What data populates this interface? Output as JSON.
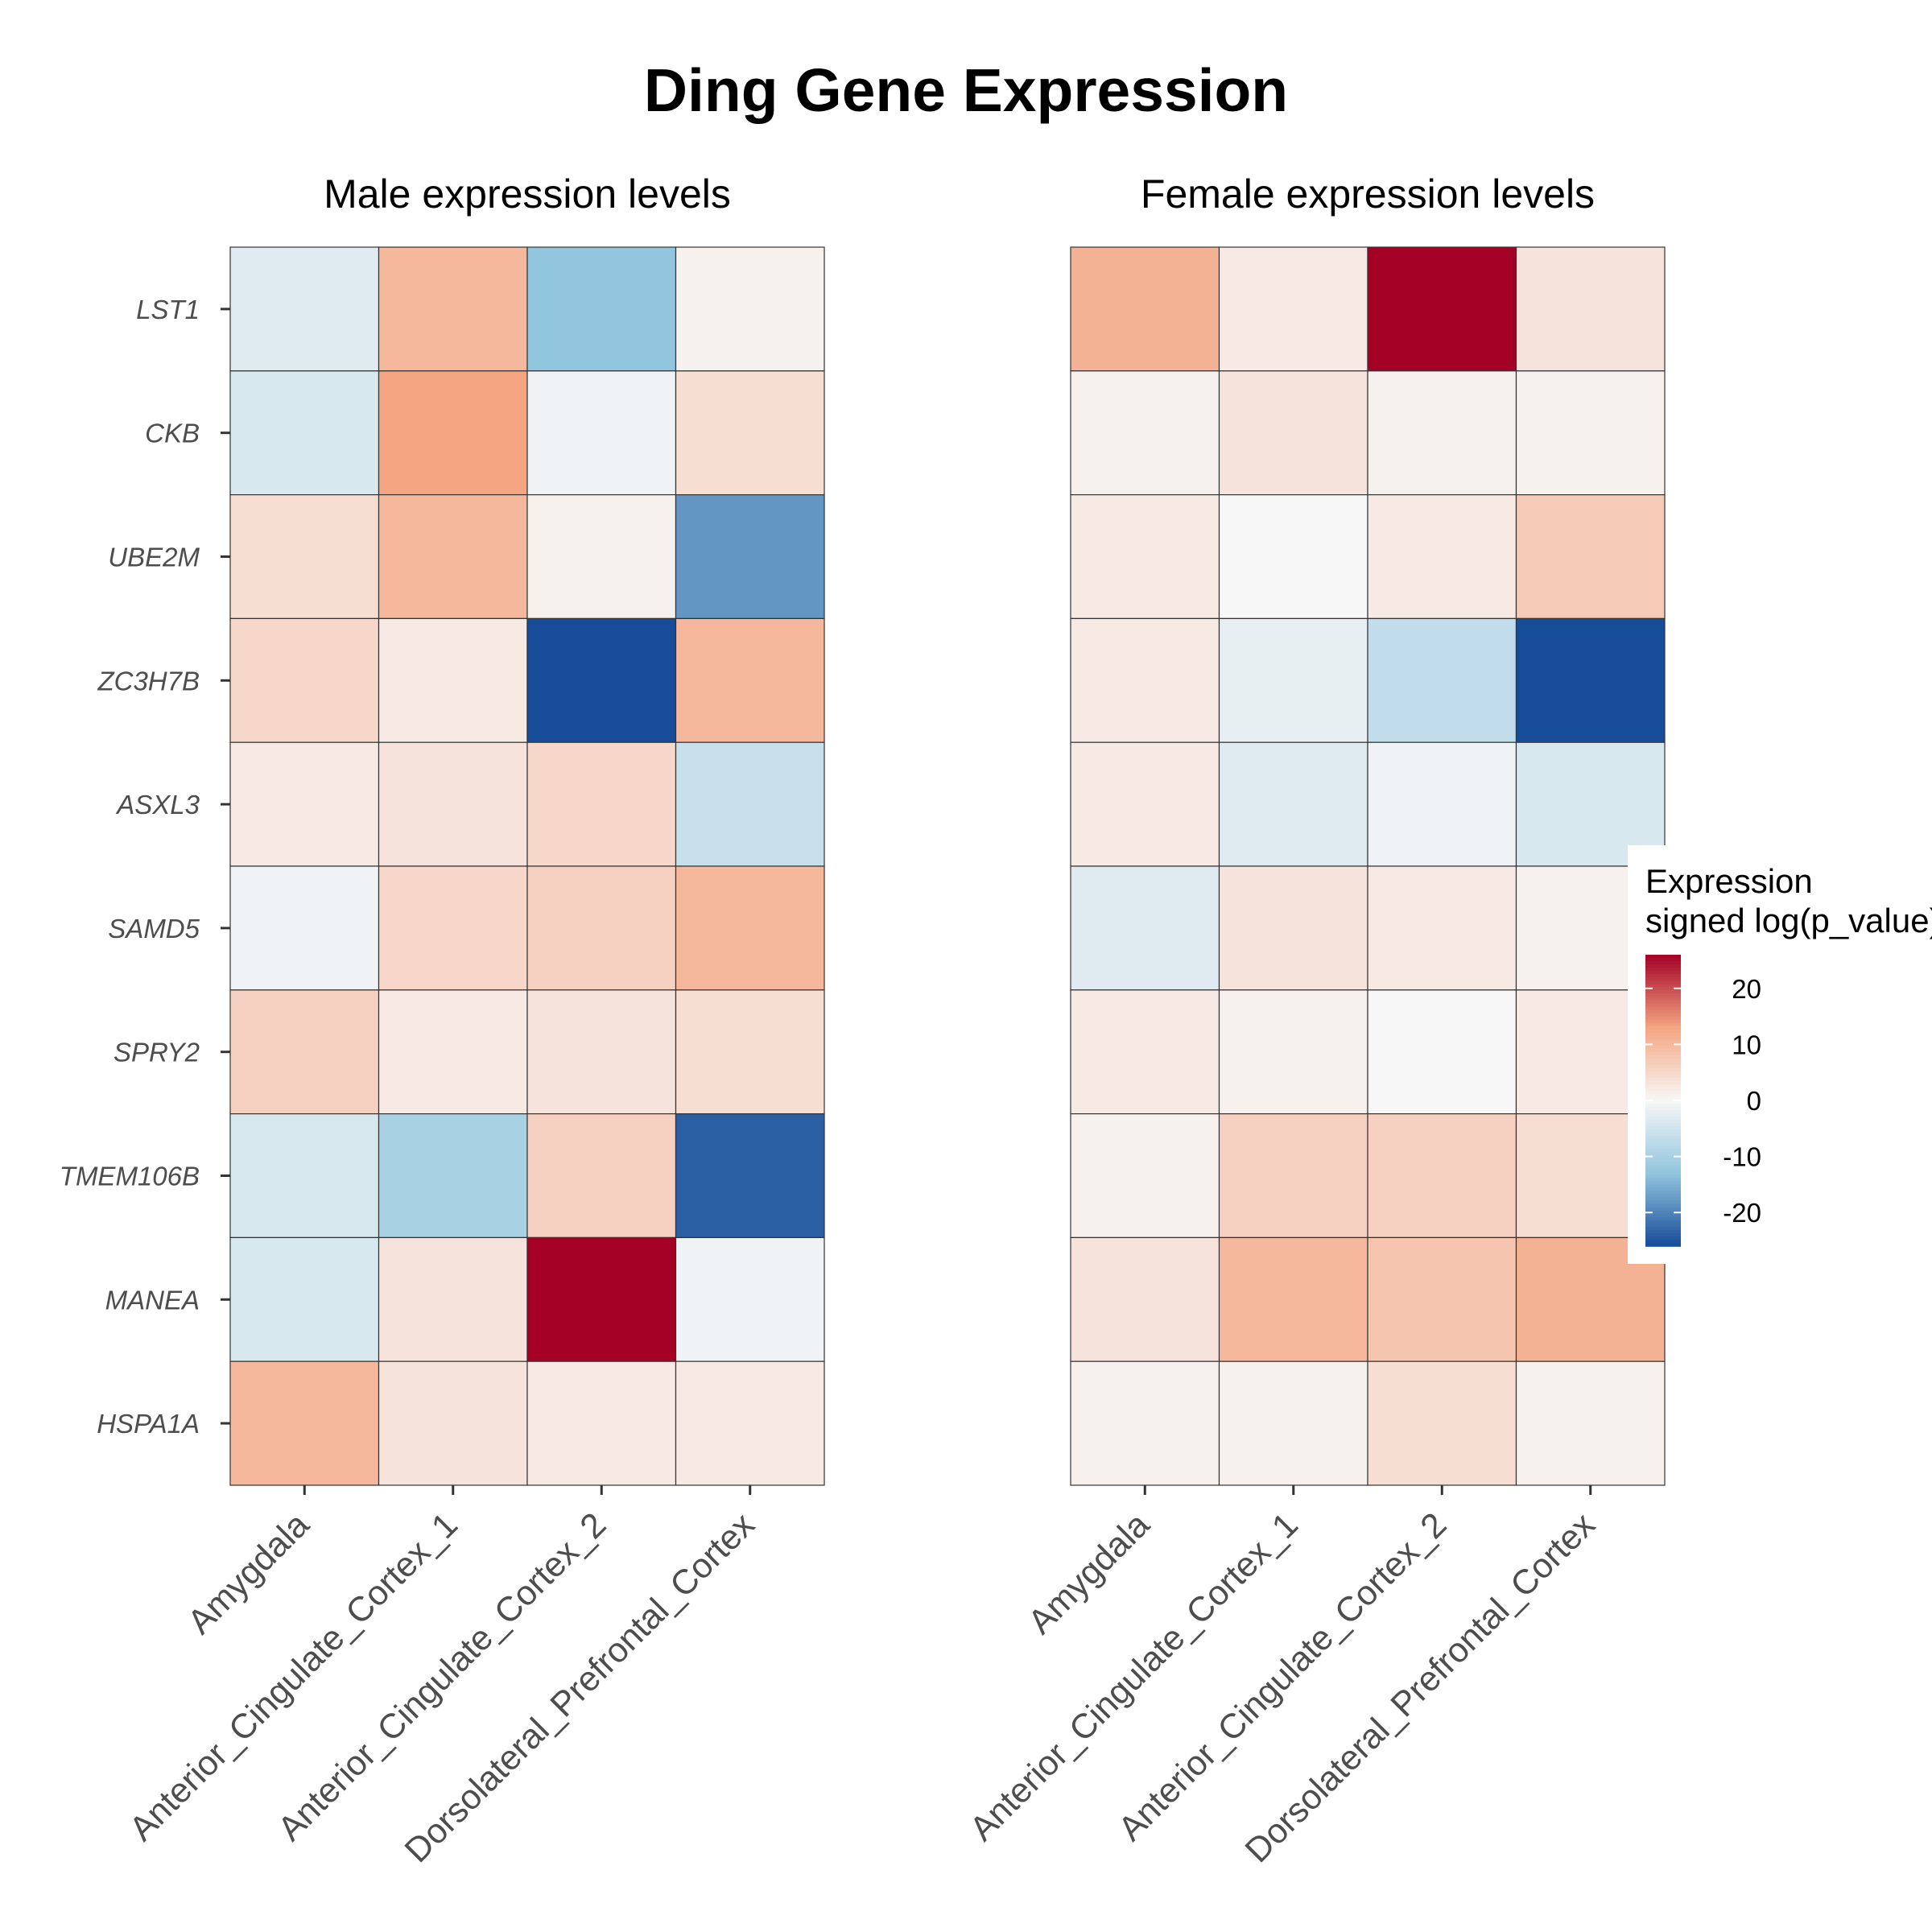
{
  "chart_data": {
    "type": "heatmap",
    "title": "Ding Gene Expression",
    "genes": [
      "LST1",
      "CKB",
      "UBE2M",
      "ZC3H7B",
      "ASXL3",
      "SAMD5",
      "SPRY2",
      "TMEM106B",
      "MANEA",
      "HSPA1A"
    ],
    "regions": [
      "Amygdala",
      "Anterior_Cingulate_Cortex_1",
      "Anterior_Cingulate_Cortex_2",
      "Dorsolateral_Prefrontal_Cortex"
    ],
    "panels": [
      {
        "name": "male",
        "subtitle": "Male expression levels",
        "values": [
          [
            -3,
            10,
            -13,
            1
          ],
          [
            -4,
            13,
            -1,
            4
          ],
          [
            4,
            10,
            1,
            -18
          ],
          [
            5,
            2,
            -26,
            10
          ],
          [
            2,
            3,
            5,
            -6
          ],
          [
            -1,
            5,
            6,
            10
          ],
          [
            6,
            2,
            3,
            4
          ],
          [
            -4,
            -10,
            6,
            -24
          ],
          [
            -4,
            3,
            26,
            -1
          ],
          [
            10,
            3,
            2,
            2
          ]
        ]
      },
      {
        "name": "female",
        "subtitle": "Female expression levels",
        "values": [
          [
            11,
            2,
            26,
            3
          ],
          [
            1,
            3,
            1,
            1
          ],
          [
            2,
            0,
            2,
            7
          ],
          [
            2,
            -2,
            -7,
            -26
          ],
          [
            2,
            -3,
            -1,
            -4
          ],
          [
            -3,
            3,
            2,
            1
          ],
          [
            2,
            1,
            0,
            2
          ],
          [
            1,
            6,
            6,
            4
          ],
          [
            3,
            10,
            8,
            11
          ],
          [
            1,
            1,
            4,
            1
          ]
        ]
      }
    ],
    "legend": {
      "title_line1": "Expression",
      "title_line2": "signed log(p_value)",
      "ticks": [
        20,
        10,
        0,
        -10,
        -20
      ],
      "tick_labels": [
        "20",
        "10",
        "0",
        "-10",
        "-20"
      ],
      "range": [
        -26,
        26
      ]
    },
    "colors": {
      "high": "#a50026",
      "mid_high": "#f4a582",
      "mid": "#f7f7f7",
      "mid_low": "#92c5de",
      "low": "#174c99"
    }
  }
}
